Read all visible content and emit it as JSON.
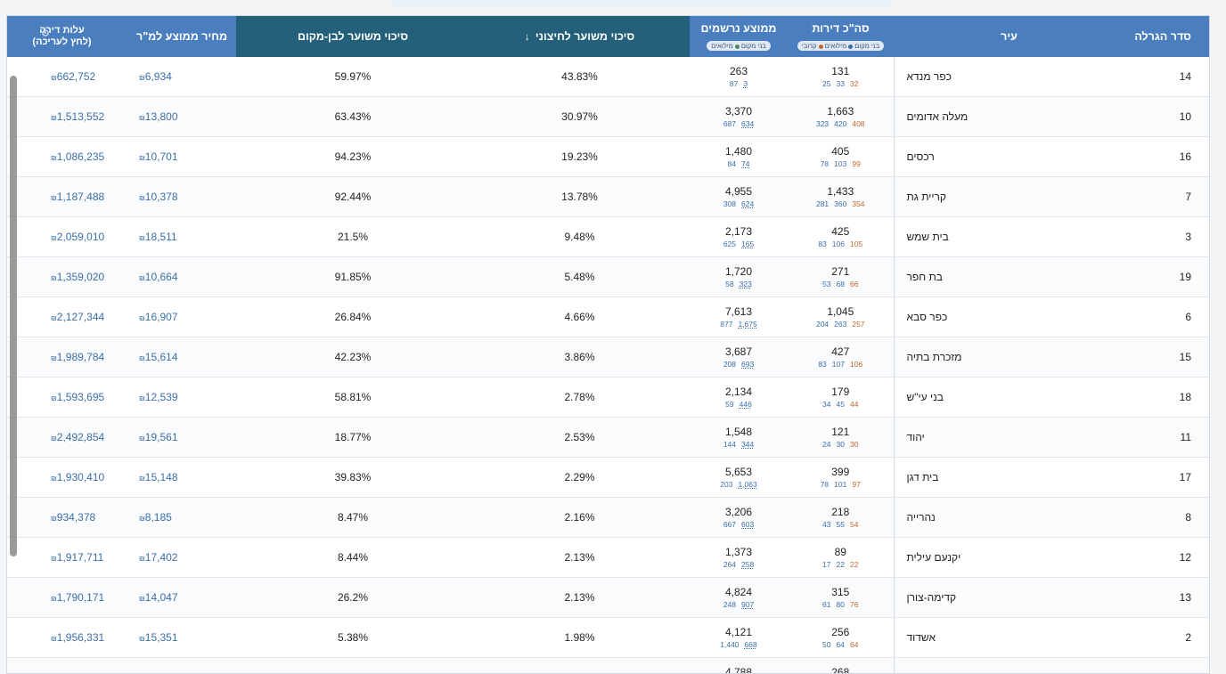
{
  "header": {
    "rank": "סדר הגרלה",
    "city": "עיר",
    "total": "סה\"כ דירות",
    "registered": "ממוצע נרשמים",
    "legend_total": [
      "בני מקום",
      "מילואים",
      "קרובי"
    ],
    "legend_registered": [
      "בני מקום",
      "מילואים"
    ],
    "pct": "סיכוי משוער לחיצוני",
    "rent": "סיכוי משוער לבן-מקום",
    "price": "מחיר ממוצע למ\"ר",
    "cost": "עלות דירה",
    "cost_sub": "(לחץ לעריכה)",
    "sort_icon": "arrow-down",
    "gear_icon": "gear"
  },
  "rows": [
    {
      "rank": "14",
      "city": "כפר מנדא",
      "tot": "131",
      "t1": "25",
      "t2": "33",
      "t3": "32",
      "reg": "263",
      "r1": "87",
      "r2": "3",
      "pct": "43.83%",
      "rent": "59.97%",
      "price": "6,934",
      "cost": "662,752"
    },
    {
      "rank": "10",
      "city": "מעלה אדומים",
      "tot": "1,663",
      "t1": "323",
      "t2": "420",
      "t3": "408",
      "reg": "3,370",
      "r1": "687",
      "r2": "634",
      "pct": "30.97%",
      "rent": "63.43%",
      "price": "13,800",
      "cost": "1,513,552"
    },
    {
      "rank": "16",
      "city": "רכסים",
      "tot": "405",
      "t1": "78",
      "t2": "103",
      "t3": "99",
      "reg": "1,480",
      "r1": "84",
      "r2": "74",
      "pct": "19.23%",
      "rent": "94.23%",
      "price": "10,701",
      "cost": "1,086,235"
    },
    {
      "rank": "7",
      "city": "קריית גת",
      "tot": "1,433",
      "t1": "281",
      "t2": "360",
      "t3": "354",
      "reg": "4,955",
      "r1": "308",
      "r2": "624",
      "pct": "13.78%",
      "rent": "92.44%",
      "price": "10,378",
      "cost": "1,187,488"
    },
    {
      "rank": "3",
      "city": "בית שמש",
      "tot": "425",
      "t1": "83",
      "t2": "106",
      "t3": "105",
      "reg": "2,173",
      "r1": "625",
      "r2": "165",
      "pct": "9.48%",
      "rent": "21.5%",
      "price": "18,511",
      "cost": "2,059,010"
    },
    {
      "rank": "19",
      "city": "בת חפר",
      "tot": "271",
      "t1": "53",
      "t2": "68",
      "t3": "66",
      "reg": "1,720",
      "r1": "58",
      "r2": "323",
      "pct": "5.48%",
      "rent": "91.85%",
      "price": "10,664",
      "cost": "1,359,020"
    },
    {
      "rank": "6",
      "city": "כפר סבא",
      "tot": "1,045",
      "t1": "204",
      "t2": "263",
      "t3": "257",
      "reg": "7,613",
      "r1": "877",
      "r2": "1,675",
      "pct": "4.66%",
      "rent": "26.84%",
      "price": "16,907",
      "cost": "2,127,344"
    },
    {
      "rank": "15",
      "city": "מזכרת בתיה",
      "tot": "427",
      "t1": "83",
      "t2": "107",
      "t3": "106",
      "reg": "3,687",
      "r1": "208",
      "r2": "693",
      "pct": "3.86%",
      "rent": "42.23%",
      "price": "15,614",
      "cost": "1,989,784"
    },
    {
      "rank": "18",
      "city": "בני עי\"ש",
      "tot": "179",
      "t1": "34",
      "t2": "45",
      "t3": "44",
      "reg": "2,134",
      "r1": "59",
      "r2": "446",
      "pct": "2.78%",
      "rent": "58.81%",
      "price": "12,539",
      "cost": "1,593,695"
    },
    {
      "rank": "11",
      "city": "יהוד",
      "tot": "121",
      "t1": "24",
      "t2": "30",
      "t3": "30",
      "reg": "1,548",
      "r1": "144",
      "r2": "344",
      "pct": "2.53%",
      "rent": "18.77%",
      "price": "19,561",
      "cost": "2,492,854"
    },
    {
      "rank": "17",
      "city": "בית דגן",
      "tot": "399",
      "t1": "78",
      "t2": "101",
      "t3": "97",
      "reg": "5,653",
      "r1": "203",
      "r2": "1,063",
      "pct": "2.29%",
      "rent": "39.83%",
      "price": "15,148",
      "cost": "1,930,410"
    },
    {
      "rank": "8",
      "city": "נהרייה",
      "tot": "218",
      "t1": "43",
      "t2": "55",
      "t3": "54",
      "reg": "3,206",
      "r1": "667",
      "r2": "603",
      "pct": "2.16%",
      "rent": "8.47%",
      "price": "8,185",
      "cost": "934,378"
    },
    {
      "rank": "12",
      "city": "יקנעם עילית",
      "tot": "89",
      "t1": "17",
      "t2": "22",
      "t3": "22",
      "reg": "1,373",
      "r1": "264",
      "r2": "258",
      "pct": "2.13%",
      "rent": "8.44%",
      "price": "17,402",
      "cost": "1,917,711"
    },
    {
      "rank": "13",
      "city": "קדימה-צורן",
      "tot": "315",
      "t1": "61",
      "t2": "80",
      "t3": "76",
      "reg": "4,824",
      "r1": "248",
      "r2": "907",
      "pct": "2.13%",
      "rent": "26.2%",
      "price": "14,047",
      "cost": "1,790,171"
    },
    {
      "rank": "2",
      "city": "אשדוד",
      "tot": "256",
      "t1": "50",
      "t2": "64",
      "t3": "64",
      "reg": "4,121",
      "r1": "1,440",
      "r2": "668",
      "pct": "1.98%",
      "rent": "5.38%",
      "price": "15,351",
      "cost": "1,956,331"
    },
    {
      "rank": "",
      "city": "",
      "tot": "268",
      "t1": "",
      "t2": "",
      "t3": "",
      "reg": "4,788",
      "r1": "",
      "r2": "",
      "pct": "",
      "rent": "",
      "price": "",
      "cost": ""
    }
  ],
  "currency_symbol": "₪"
}
